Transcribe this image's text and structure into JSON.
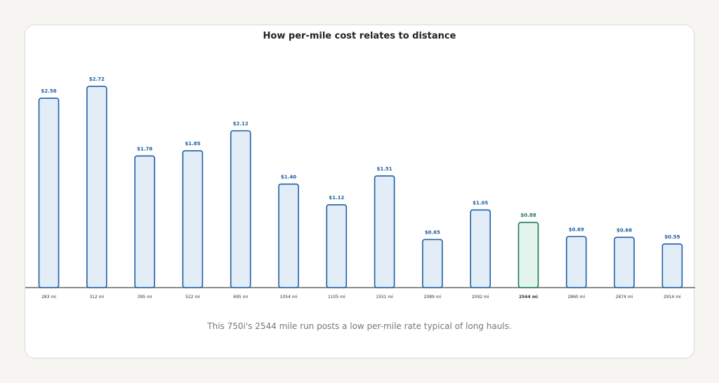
{
  "chart_data": {
    "type": "bar",
    "title": "How per-mile cost relates to distance",
    "caption": "This 750i's 2544 mile run posts a low per-mile rate typical of long hauls.",
    "categories": [
      "283 mi",
      "312 mi",
      "395 mi",
      "522 mi",
      "695 mi",
      "1054 mi",
      "1105 mi",
      "1551 mi",
      "2089 mi",
      "2092 mi",
      "2544 mi",
      "2860 mi",
      "2874 mi",
      "2914 mi"
    ],
    "values": [
      2.56,
      2.72,
      1.78,
      1.85,
      2.12,
      1.4,
      1.12,
      1.51,
      0.65,
      1.05,
      0.88,
      0.69,
      0.68,
      0.59
    ],
    "value_labels": [
      "$2.56",
      "$2.72",
      "$1.78",
      "$1.85",
      "$2.12",
      "$1.40",
      "$1.12",
      "$1.51",
      "$0.65",
      "$1.05",
      "$0.88",
      "$0.69",
      "$0.68",
      "$0.59"
    ],
    "highlight_category": "2544 mi",
    "ylim": [
      0,
      3.5
    ],
    "grid": false,
    "colors": {
      "bar_fill": "#e3edf8",
      "bar_stroke": "#1d5fa6",
      "label": "#1d5fa6",
      "highlight_fill": "#e2f4ec",
      "highlight_stroke": "#1e7a57",
      "highlight_label": "#1e7a57",
      "axis": "#666666"
    }
  }
}
